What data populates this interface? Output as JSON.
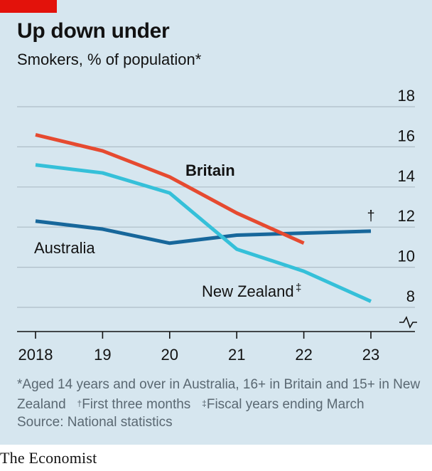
{
  "header": {
    "title": "Up down under",
    "subtitle": "Smokers, % of population*"
  },
  "notes": {
    "line1": "*Aged 14 years and over in Australia, 16+ in Britain and 15+ in New Zealand",
    "dagger_mark": "†",
    "dagger_text": "First three months",
    "ddagger_mark": "‡",
    "ddagger_text": "Fiscal years ending March",
    "source": "Source: National statistics"
  },
  "brand": {
    "logo_text": "The Economist"
  },
  "chart_data": {
    "type": "line",
    "title": "Up down under",
    "subtitle": "Smokers, % of population*",
    "x": [
      2018,
      2019,
      2020,
      2021,
      2022,
      2023
    ],
    "x_tick_labels": [
      "2018",
      "19",
      "20",
      "21",
      "22",
      "23"
    ],
    "ylim": [
      7,
      18
    ],
    "y_ticks": [
      8,
      10,
      12,
      14,
      16,
      18
    ],
    "y_tick_labels": [
      "8",
      "10",
      "12",
      "14",
      "16",
      "18"
    ],
    "y_axis_side": "right",
    "y_axis_break": true,
    "grid": true,
    "series": [
      {
        "name": "Britain",
        "color": "#e64a30",
        "label_bold": true,
        "x": [
          2018,
          2019,
          2020,
          2021,
          2022
        ],
        "values": [
          16.6,
          15.8,
          14.5,
          12.7,
          11.2
        ]
      },
      {
        "name": "New Zealand",
        "label_suffix": "‡",
        "color": "#35c0d9",
        "x": [
          2018,
          2019,
          2020,
          2021,
          2022,
          2023
        ],
        "values": [
          15.1,
          14.7,
          13.7,
          10.9,
          9.8,
          8.3
        ]
      },
      {
        "name": "Australia",
        "color": "#17679b",
        "end_marker": "†",
        "x": [
          2018,
          2019,
          2020,
          2021,
          2022,
          2023
        ],
        "values": [
          12.3,
          11.9,
          11.2,
          11.6,
          11.7,
          11.8
        ]
      }
    ]
  }
}
